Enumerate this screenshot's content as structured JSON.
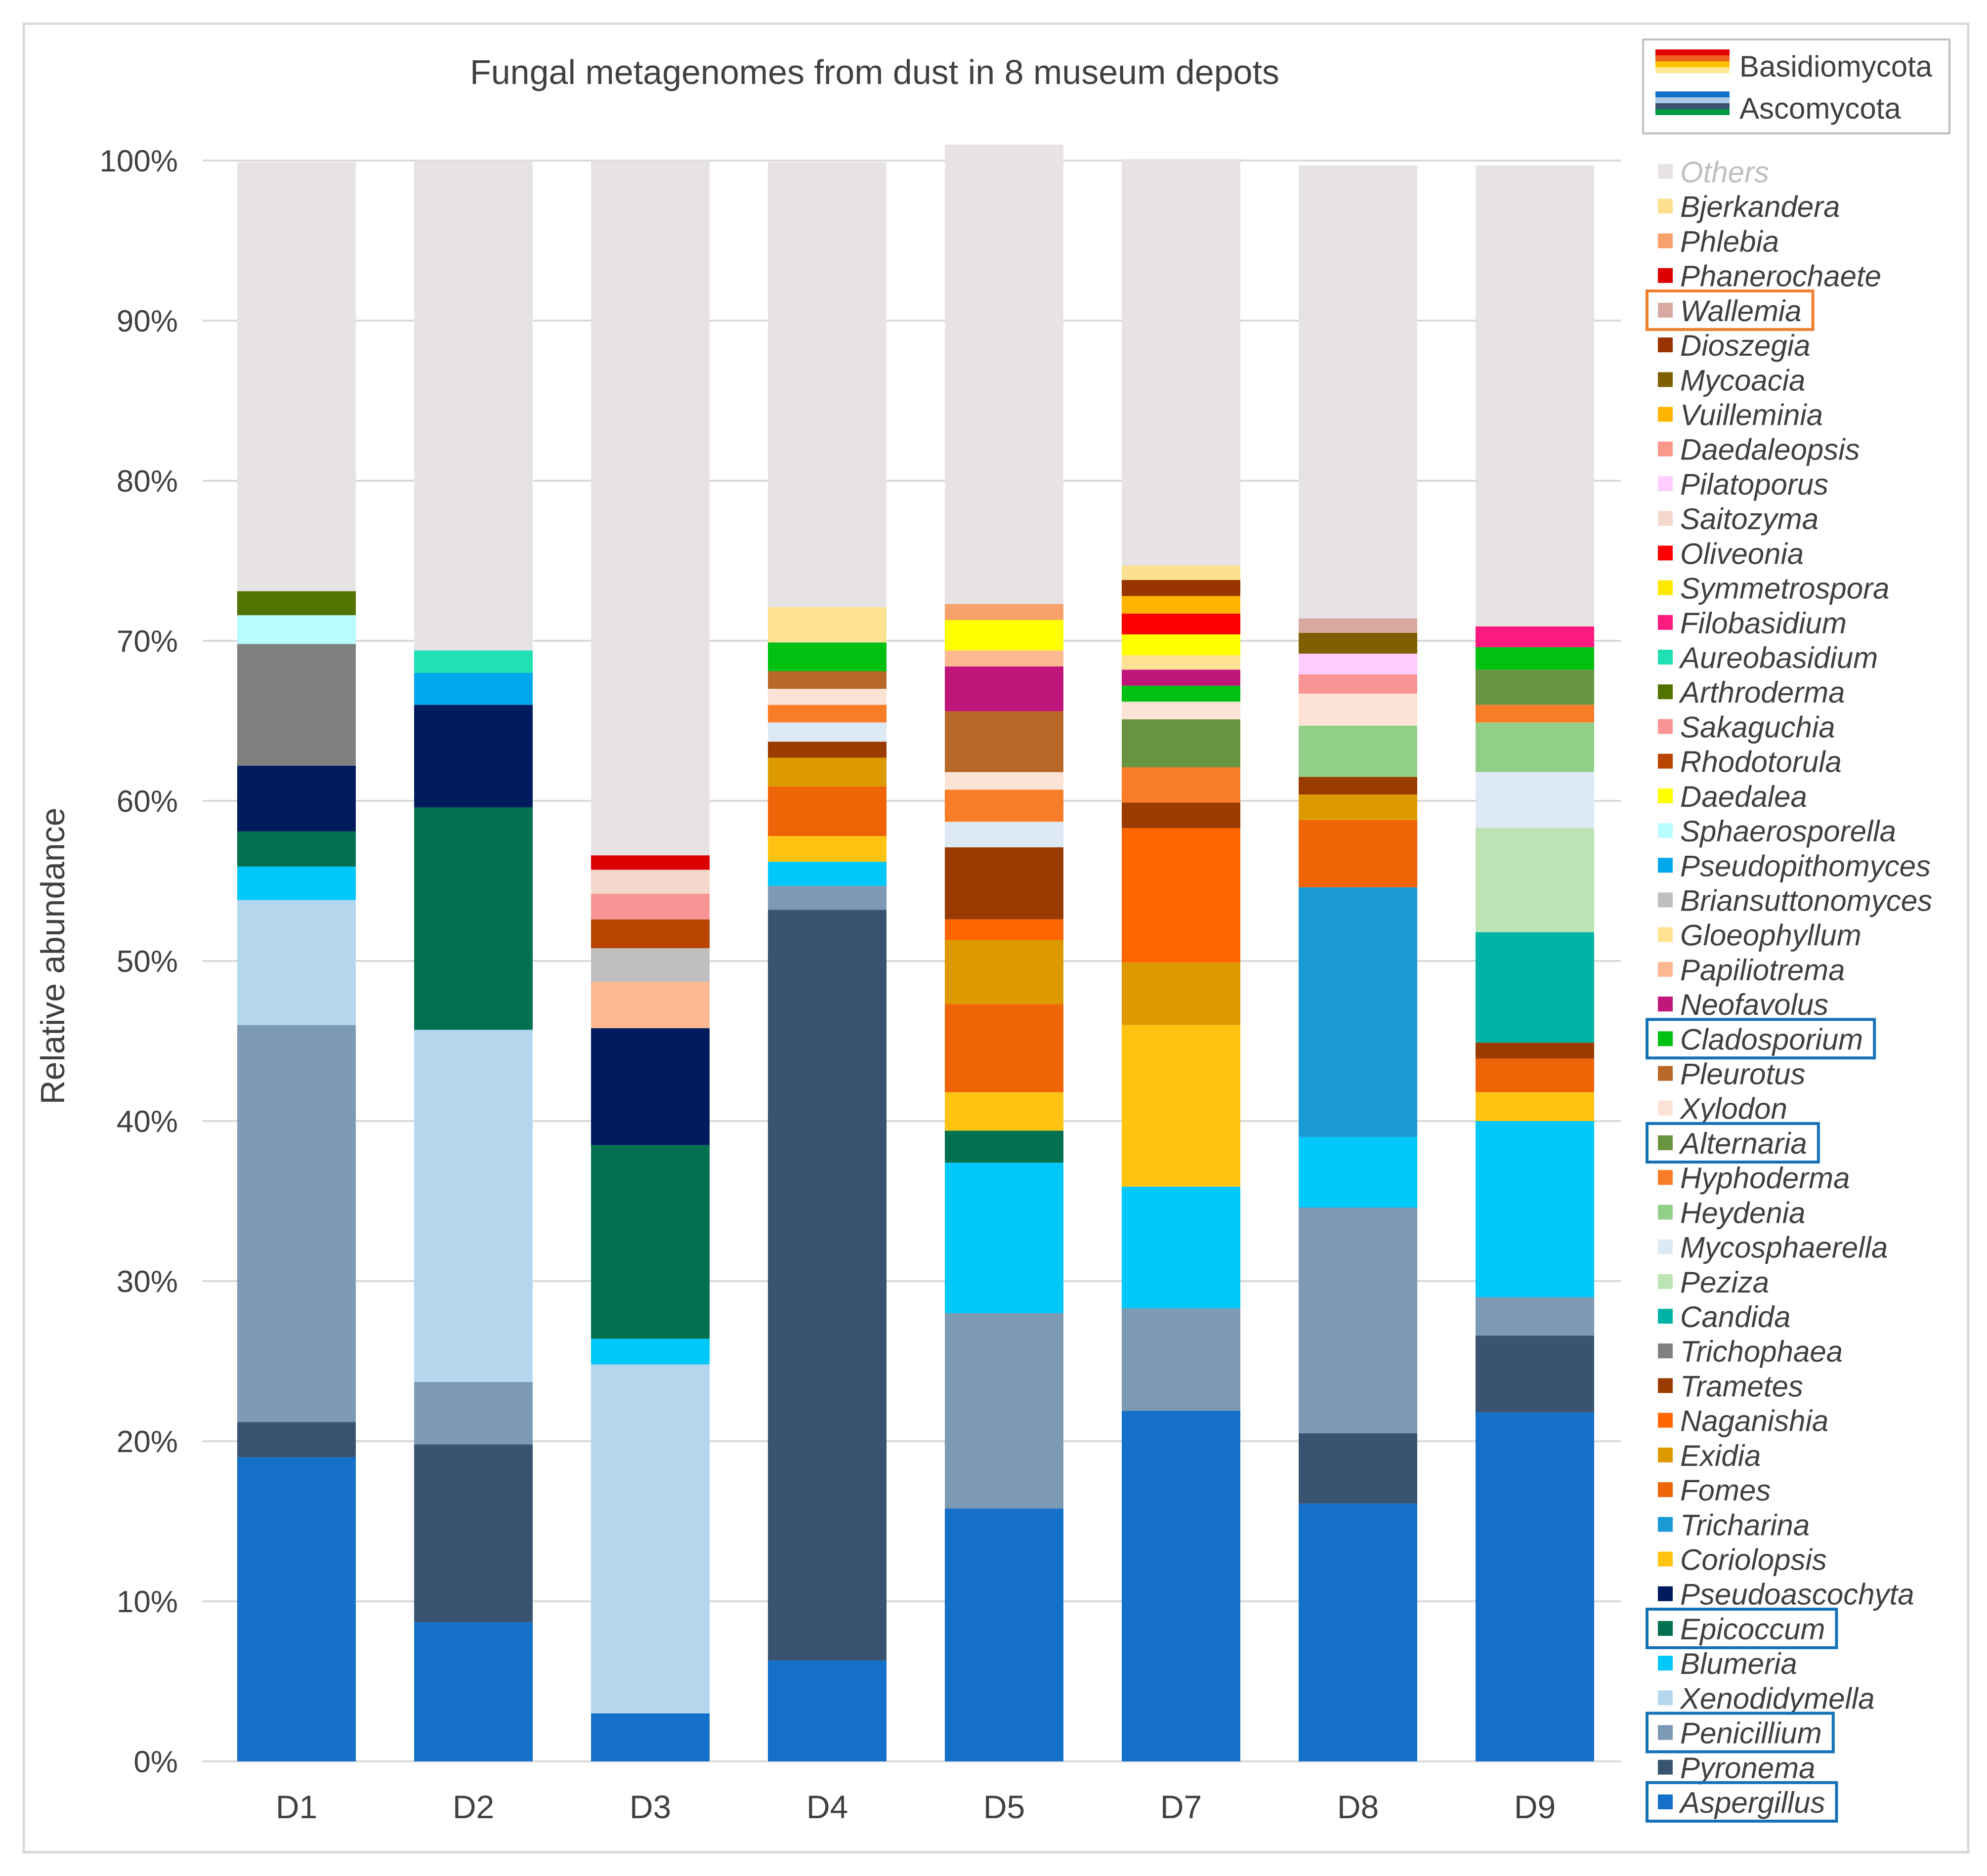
{
  "chart_data": {
    "type": "stacked-bar",
    "title": "Fungal metagenomes from dust in 8 museum depots",
    "xlabel": "",
    "ylabel": "Relative abundance",
    "ylim": [
      0,
      100
    ],
    "y_ticks": [
      "0%",
      "10%",
      "20%",
      "30%",
      "40%",
      "50%",
      "60%",
      "70%",
      "80%",
      "90%",
      "100%"
    ],
    "categories": [
      "D1",
      "D2",
      "D3",
      "D4",
      "D5",
      "D7",
      "D8",
      "D9"
    ],
    "phylum_legend": [
      {
        "name": "Basidiomycota",
        "colors": [
          "#e00000",
          "#f06020",
          "#ffc000",
          "#ffe890"
        ]
      },
      {
        "name": "Ascomycota",
        "colors": [
          "#1470c8",
          "#a9cbe8",
          "#395470",
          "#009a44"
        ]
      }
    ],
    "series": [
      {
        "name": "Aspergillus",
        "color": "#1470c8",
        "boxed": true,
        "values": [
          19.0,
          8.7,
          3.0,
          6.3,
          15.8,
          21.9,
          16.1,
          21.8
        ]
      },
      {
        "name": "Pyronema",
        "color": "#395470",
        "boxed": false,
        "values": [
          2.2,
          11.1,
          0,
          46.9,
          0,
          0,
          4.4,
          4.8
        ]
      },
      {
        "name": "Penicillium",
        "color": "#7d9ab5",
        "boxed": true,
        "values": [
          24.8,
          3.9,
          0,
          1.5,
          12.2,
          6.4,
          14.1,
          2.4
        ]
      },
      {
        "name": "Xenodidymella",
        "color": "#b5d7ee",
        "boxed": false,
        "values": [
          7.8,
          22.0,
          21.8,
          0,
          0,
          0,
          0,
          0
        ]
      },
      {
        "name": "Blumeria",
        "color": "#00c8fa",
        "boxed": false,
        "values": [
          2.1,
          0,
          1.6,
          1.5,
          9.4,
          7.6,
          4.4,
          11.0
        ]
      },
      {
        "name": "Epicoccum",
        "color": "#007050",
        "boxed": true,
        "values": [
          2.2,
          13.9,
          12.1,
          0,
          2.0,
          0,
          0,
          0
        ]
      },
      {
        "name": "Pseudoascochyta",
        "color": "#001a5e",
        "boxed": false,
        "values": [
          4.1,
          6.4,
          7.3,
          0,
          0,
          0,
          0,
          0
        ]
      },
      {
        "name": "Coriolopsis",
        "color": "#ffc412",
        "boxed": false,
        "values": [
          0,
          0,
          0,
          1.6,
          2.4,
          10.1,
          0,
          1.8
        ]
      },
      {
        "name": "Tricharina",
        "color": "#1a9bd6",
        "boxed": false,
        "values": [
          0,
          0,
          0,
          0,
          0,
          0,
          15.6,
          0
        ]
      },
      {
        "name": "Fomes",
        "color": "#f06408",
        "boxed": false,
        "values": [
          0,
          0,
          0,
          3.1,
          5.5,
          0,
          4.2,
          2.1
        ]
      },
      {
        "name": "Exidia",
        "color": "#dd9a00",
        "boxed": false,
        "values": [
          0,
          0,
          0,
          1.8,
          4.0,
          3.9,
          1.6,
          0
        ]
      },
      {
        "name": "Naganishia",
        "color": "#ff6600",
        "boxed": false,
        "values": [
          0,
          0,
          0,
          0,
          1.3,
          8.4,
          0,
          0
        ]
      },
      {
        "name": "Trametes",
        "color": "#9a3c00",
        "boxed": false,
        "values": [
          0,
          0,
          0,
          1.0,
          4.5,
          1.6,
          1.1,
          1.0
        ]
      },
      {
        "name": "Trichophaea",
        "color": "#808080",
        "boxed": false,
        "values": [
          7.6,
          0,
          0,
          0,
          0,
          0,
          0,
          0
        ]
      },
      {
        "name": "Candida",
        "color": "#00b3a4",
        "boxed": false,
        "values": [
          0,
          0,
          0,
          0,
          0,
          0,
          0,
          6.9
        ]
      },
      {
        "name": "Peziza",
        "color": "#bce3b4",
        "boxed": false,
        "values": [
          0,
          0,
          0,
          0,
          0,
          0,
          0,
          6.5
        ]
      },
      {
        "name": "Mycosphaerella",
        "color": "#ddeaf6",
        "boxed": false,
        "values": [
          0,
          0,
          0,
          1.2,
          1.6,
          0,
          0,
          3.5
        ]
      },
      {
        "name": "Heydenia",
        "color": "#92d08a",
        "boxed": false,
        "values": [
          0,
          0,
          0,
          0,
          0,
          0,
          3.2,
          3.1
        ]
      },
      {
        "name": "Hyphoderma",
        "color": "#f97d28",
        "boxed": false,
        "values": [
          0,
          0,
          0,
          1.1,
          2.0,
          2.2,
          0,
          1.1
        ]
      },
      {
        "name": "Alternaria",
        "color": "#6a9540",
        "boxed": true,
        "values": [
          0,
          0,
          0,
          0,
          0,
          3.0,
          0,
          2.2
        ]
      },
      {
        "name": "Xylodon",
        "color": "#fde3d6",
        "boxed": false,
        "values": [
          0,
          0,
          0,
          1.0,
          1.1,
          1.1,
          2.0,
          0
        ]
      },
      {
        "name": "Pleurotus",
        "color": "#b86828",
        "boxed": false,
        "values": [
          0,
          0,
          0,
          1.1,
          3.8,
          0,
          0,
          0
        ]
      },
      {
        "name": "Cladosporium",
        "color": "#00c012",
        "boxed": true,
        "values": [
          0,
          0,
          0,
          1.8,
          0,
          1.0,
          0,
          1.4
        ]
      },
      {
        "name": "Neofavolus",
        "color": "#c0157a",
        "boxed": false,
        "values": [
          0,
          0,
          0,
          0,
          2.8,
          1.0,
          0,
          0
        ]
      },
      {
        "name": "Papiliotrema",
        "color": "#fcb992",
        "boxed": false,
        "values": [
          0,
          0,
          2.9,
          0,
          1.0,
          0,
          0,
          0
        ]
      },
      {
        "name": "Gloeophyllum",
        "color": "#fde293",
        "boxed": false,
        "values": [
          0,
          0,
          0,
          2.2,
          0,
          0.9,
          0,
          0
        ]
      },
      {
        "name": "Briansuttonomyces",
        "color": "#bfbfbf",
        "boxed": false,
        "values": [
          0,
          0,
          2.1,
          0,
          0,
          0,
          0,
          0
        ]
      },
      {
        "name": "Pseudopithomyces",
        "color": "#00a8ec",
        "boxed": false,
        "values": [
          0,
          2.0,
          0,
          0,
          0,
          0,
          0,
          0
        ]
      },
      {
        "name": "Sphaerosporella",
        "color": "#b8fcff",
        "boxed": false,
        "values": [
          1.8,
          0,
          0,
          0,
          0,
          0,
          0,
          0
        ]
      },
      {
        "name": "Daedalea",
        "color": "#ffff00",
        "boxed": false,
        "values": [
          0,
          0,
          0,
          0,
          1.9,
          1.3,
          0,
          0
        ]
      },
      {
        "name": "Rhodotorula",
        "color": "#b84400",
        "boxed": false,
        "values": [
          0,
          0,
          1.8,
          0,
          0,
          0,
          0,
          0
        ]
      },
      {
        "name": "Sakaguchia",
        "color": "#f99494",
        "boxed": false,
        "values": [
          0,
          0,
          1.6,
          0,
          0,
          0,
          1.2,
          0
        ]
      },
      {
        "name": "Arthroderma",
        "color": "#537300",
        "boxed": false,
        "values": [
          1.5,
          0,
          0,
          0,
          0,
          0,
          0,
          0
        ]
      },
      {
        "name": "Aureobasidium",
        "color": "#20e0b4",
        "boxed": false,
        "values": [
          0,
          1.4,
          0,
          0,
          0,
          0,
          0,
          0
        ]
      },
      {
        "name": "Filobasidium",
        "color": "#ff1a7f",
        "boxed": false,
        "values": [
          0,
          0,
          0,
          0,
          0,
          0,
          0,
          1.3
        ]
      },
      {
        "name": "Symmetrospora",
        "color": "#ffe800",
        "boxed": false,
        "values": [
          0,
          0,
          0,
          0,
          0,
          0,
          0,
          0
        ]
      },
      {
        "name": "Oliveonia",
        "color": "#ff0000",
        "boxed": false,
        "values": [
          0,
          0,
          0,
          0,
          0,
          1.3,
          0,
          0
        ]
      },
      {
        "name": "Saitozyma",
        "color": "#f4d8cc",
        "boxed": false,
        "values": [
          0,
          0,
          1.5,
          0,
          0,
          0,
          0,
          0
        ]
      },
      {
        "name": "Pilatoporus",
        "color": "#ffccff",
        "boxed": false,
        "values": [
          0,
          0,
          0,
          0,
          0,
          0,
          1.3,
          0
        ]
      },
      {
        "name": "Daedaleopsis",
        "color": "#f9988a",
        "boxed": false,
        "values": [
          0,
          0,
          0,
          0,
          0,
          0,
          0,
          0
        ]
      },
      {
        "name": "Vuilleminia",
        "color": "#ffb400",
        "boxed": false,
        "values": [
          0,
          0,
          0,
          0,
          0,
          1.1,
          0,
          0
        ]
      },
      {
        "name": "Mycoacia",
        "color": "#7f6000",
        "boxed": false,
        "values": [
          0,
          0,
          0,
          0,
          0,
          0,
          1.3,
          0
        ]
      },
      {
        "name": "Dioszegia",
        "color": "#993300",
        "boxed": false,
        "values": [
          0,
          0,
          0,
          0,
          0,
          1.0,
          0,
          0
        ]
      },
      {
        "name": "Wallemia",
        "color": "#d8a9a0",
        "boxed": true,
        "values": [
          0,
          0,
          0,
          0,
          0,
          0,
          0.9,
          0
        ]
      },
      {
        "name": "Phanerochaete",
        "color": "#dd0000",
        "boxed": false,
        "values": [
          0,
          0,
          0.9,
          0,
          0,
          0,
          0,
          0
        ]
      },
      {
        "name": "Phlebia",
        "color": "#f7a26d",
        "boxed": false,
        "values": [
          0,
          0,
          0,
          0,
          1.0,
          0,
          0,
          0
        ]
      },
      {
        "name": "Bjerkandera",
        "color": "#fde090",
        "boxed": false,
        "values": [
          0,
          0,
          0,
          0,
          0,
          0.9,
          0,
          0
        ]
      },
      {
        "name": "Others",
        "color": "#e7e3e4",
        "boxed": false,
        "values": [
          26.8,
          30.6,
          43.4,
          27.8,
          28.7,
          25.4,
          28.3,
          28.8
        ]
      }
    ],
    "legend_box_colors": {
      "Wallemia": "#f08030",
      "default": "#1672b8"
    }
  }
}
